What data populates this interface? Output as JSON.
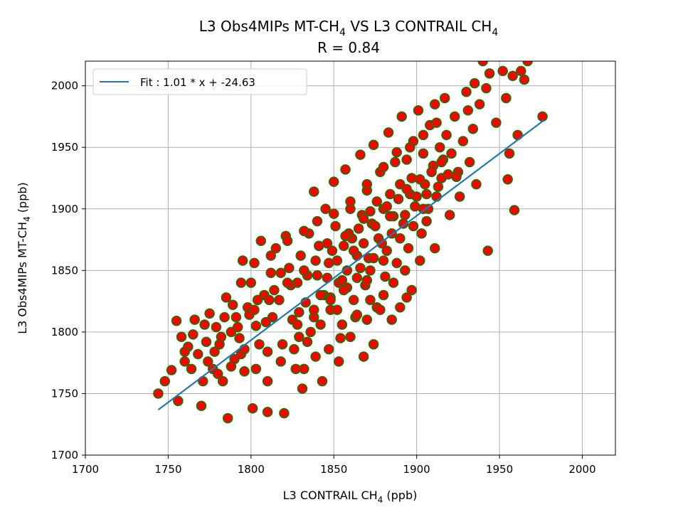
{
  "chart_data": {
    "type": "scatter",
    "title_line1_main": "L3 Obs4MIPs MT-CH",
    "title_line1_mid": " VS L3 CONTRAIL CH",
    "title_subscript": "4",
    "title_line2": "R = 0.84",
    "xlabel_main": "L3 CONTRAIL CH",
    "xlabel_sub": "4",
    "xlabel_tail": " (ppb)",
    "ylabel_main": "L3 Obs4MIPs MT-CH",
    "ylabel_sub": "4",
    "ylabel_tail": " (ppb)",
    "xlim": [
      1700,
      2020
    ],
    "ylim": [
      1700,
      2020
    ],
    "xticks": [
      "1700",
      "1750",
      "1800",
      "1850",
      "1900",
      "1950",
      "2000"
    ],
    "yticks": [
      "1700",
      "1750",
      "1800",
      "1850",
      "1900",
      "1950",
      "2000"
    ],
    "grid": true,
    "legend_position": "top-left",
    "legend_label": "Fit : 1.01 * x + -24.63",
    "fit": {
      "slope": 1.01,
      "intercept": -24.63,
      "x_range": [
        1744,
        1977
      ]
    },
    "marker_fill": "#ff0000",
    "marker_edge": "#008000",
    "fit_color": "#1f77b4",
    "points": [
      [
        1744,
        1750
      ],
      [
        1748,
        1760
      ],
      [
        1752,
        1769
      ],
      [
        1755,
        1809
      ],
      [
        1756,
        1744
      ],
      [
        1758,
        1796
      ],
      [
        1760,
        1776
      ],
      [
        1762,
        1788
      ],
      [
        1764,
        1770
      ],
      [
        1766,
        1810
      ],
      [
        1768,
        1782
      ],
      [
        1770,
        1740
      ],
      [
        1771,
        1760
      ],
      [
        1773,
        1792
      ],
      [
        1775,
        1815
      ],
      [
        1777,
        1770
      ],
      [
        1779,
        1804
      ],
      [
        1781,
        1790
      ],
      [
        1783,
        1760
      ],
      [
        1785,
        1828
      ],
      [
        1786,
        1730
      ],
      [
        1788,
        1800
      ],
      [
        1790,
        1778
      ],
      [
        1791,
        1812
      ],
      [
        1793,
        1795
      ],
      [
        1795,
        1858
      ],
      [
        1796,
        1768
      ],
      [
        1798,
        1820
      ],
      [
        1800,
        1840
      ],
      [
        1801,
        1738
      ],
      [
        1803,
        1805
      ],
      [
        1805,
        1790
      ],
      [
        1806,
        1874
      ],
      [
        1808,
        1830
      ],
      [
        1810,
        1760
      ],
      [
        1810,
        1735
      ],
      [
        1812,
        1848
      ],
      [
        1813,
        1812
      ],
      [
        1815,
        1868
      ],
      [
        1817,
        1826
      ],
      [
        1819,
        1790
      ],
      [
        1820,
        1734
      ],
      [
        1821,
        1878
      ],
      [
        1823,
        1852
      ],
      [
        1825,
        1810
      ],
      [
        1827,
        1770
      ],
      [
        1828,
        1840
      ],
      [
        1830,
        1862
      ],
      [
        1831,
        1754
      ],
      [
        1833,
        1824
      ],
      [
        1835,
        1880
      ],
      [
        1836,
        1800
      ],
      [
        1838,
        1914
      ],
      [
        1840,
        1846
      ],
      [
        1841,
        1870
      ],
      [
        1843,
        1760
      ],
      [
        1844,
        1830
      ],
      [
        1845,
        1900
      ],
      [
        1847,
        1856
      ],
      [
        1848,
        1818
      ],
      [
        1850,
        1922
      ],
      [
        1851,
        1886
      ],
      [
        1853,
        1840
      ],
      [
        1854,
        1795
      ],
      [
        1856,
        1870
      ],
      [
        1857,
        1932
      ],
      [
        1858,
        1850
      ],
      [
        1860,
        1900
      ],
      [
        1861,
        1876
      ],
      [
        1863,
        1812
      ],
      [
        1864,
        1862
      ],
      [
        1866,
        1944
      ],
      [
        1867,
        1895
      ],
      [
        1869,
        1838
      ],
      [
        1870,
        1915
      ],
      [
        1871,
        1860
      ],
      [
        1873,
        1888
      ],
      [
        1874,
        1952
      ],
      [
        1876,
        1820
      ],
      [
        1877,
        1876
      ],
      [
        1878,
        1930
      ],
      [
        1880,
        1900
      ],
      [
        1881,
        1845
      ],
      [
        1883,
        1962
      ],
      [
        1884,
        1912
      ],
      [
        1885,
        1880
      ],
      [
        1887,
        1938
      ],
      [
        1888,
        1856
      ],
      [
        1890,
        1920
      ],
      [
        1891,
        1975
      ],
      [
        1893,
        1895
      ],
      [
        1894,
        1940
      ],
      [
        1895,
        1868
      ],
      [
        1897,
        1925
      ],
      [
        1898,
        1955
      ],
      [
        1900,
        1910
      ],
      [
        1901,
        1980
      ],
      [
        1903,
        1880
      ],
      [
        1904,
        1945
      ],
      [
        1905,
        1920
      ],
      [
        1907,
        1900
      ],
      [
        1908,
        1968
      ],
      [
        1910,
        1935
      ],
      [
        1911,
        1985
      ],
      [
        1912,
        1910
      ],
      [
        1914,
        1950
      ],
      [
        1915,
        1925
      ],
      [
        1917,
        1990
      ],
      [
        1918,
        1960
      ],
      [
        1920,
        1895
      ],
      [
        1921,
        1945
      ],
      [
        1923,
        1975
      ],
      [
        1925,
        1930
      ],
      [
        1926,
        1910
      ],
      [
        1928,
        1955
      ],
      [
        1930,
        1995
      ],
      [
        1931,
        1980
      ],
      [
        1932,
        1938
      ],
      [
        1934,
        1965
      ],
      [
        1935,
        2002
      ],
      [
        1936,
        1920
      ],
      [
        1938,
        1985
      ],
      [
        1940,
        2020
      ],
      [
        1942,
        1998
      ],
      [
        1943,
        1866
      ],
      [
        1944,
        2010
      ],
      [
        1948,
        1970
      ],
      [
        1952,
        2012
      ],
      [
        1954,
        1990
      ],
      [
        1955,
        1924
      ],
      [
        1956,
        1945
      ],
      [
        1958,
        2008
      ],
      [
        1959,
        1899
      ],
      [
        1961,
        1960
      ],
      [
        1963,
        2012
      ],
      [
        1965,
        2005
      ],
      [
        1967,
        2020
      ],
      [
        1976,
        1975
      ],
      [
        1760,
        1784
      ],
      [
        1765,
        1798
      ],
      [
        1772,
        1806
      ],
      [
        1778,
        1784
      ],
      [
        1784,
        1812
      ],
      [
        1789,
        1822
      ],
      [
        1794,
        1782
      ],
      [
        1799,
        1814
      ],
      [
        1804,
        1826
      ],
      [
        1809,
        1808
      ],
      [
        1814,
        1834
      ],
      [
        1818,
        1848
      ],
      [
        1824,
        1838
      ],
      [
        1829,
        1816
      ],
      [
        1834,
        1846
      ],
      [
        1839,
        1858
      ],
      [
        1842,
        1830
      ],
      [
        1846,
        1844
      ],
      [
        1849,
        1866
      ],
      [
        1852,
        1858
      ],
      [
        1855,
        1842
      ],
      [
        1859,
        1880
      ],
      [
        1862,
        1866
      ],
      [
        1865,
        1884
      ],
      [
        1868,
        1872
      ],
      [
        1872,
        1898
      ],
      [
        1875,
        1886
      ],
      [
        1879,
        1872
      ],
      [
        1882,
        1902
      ],
      [
        1886,
        1894
      ],
      [
        1889,
        1908
      ],
      [
        1892,
        1888
      ],
      [
        1896,
        1912
      ],
      [
        1899,
        1902
      ],
      [
        1902,
        1924
      ],
      [
        1906,
        1912
      ],
      [
        1909,
        1930
      ],
      [
        1913,
        1918
      ],
      [
        1916,
        1940
      ],
      [
        1919,
        1928
      ],
      [
        1774,
        1776
      ],
      [
        1782,
        1796
      ],
      [
        1792,
        1804
      ],
      [
        1802,
        1818
      ],
      [
        1811,
        1826
      ],
      [
        1822,
        1840
      ],
      [
        1832,
        1850
      ],
      [
        1846,
        1872
      ],
      [
        1857,
        1878
      ],
      [
        1868,
        1892
      ],
      [
        1876,
        1906
      ],
      [
        1884,
        1894
      ],
      [
        1894,
        1916
      ],
      [
        1904,
        1900
      ],
      [
        1915,
        1938
      ],
      [
        1924,
        1926
      ],
      [
        1829,
        1796
      ],
      [
        1838,
        1812
      ],
      [
        1848,
        1828
      ],
      [
        1858,
        1836
      ],
      [
        1866,
        1852
      ],
      [
        1874,
        1860
      ],
      [
        1882,
        1866
      ],
      [
        1890,
        1876
      ],
      [
        1898,
        1886
      ],
      [
        1906,
        1890
      ],
      [
        1911,
        1868
      ],
      [
        1880,
        1830
      ],
      [
        1872,
        1826
      ],
      [
        1864,
        1814
      ],
      [
        1855,
        1806
      ],
      [
        1847,
        1786
      ],
      [
        1839,
        1780
      ],
      [
        1832,
        1770
      ],
      [
        1853,
        1776
      ],
      [
        1860,
        1796
      ],
      [
        1870,
        1810
      ],
      [
        1878,
        1818
      ],
      [
        1886,
        1840
      ],
      [
        1893,
        1850
      ],
      [
        1902,
        1858
      ],
      [
        1890,
        1820
      ],
      [
        1897,
        1834
      ],
      [
        1874,
        1790
      ],
      [
        1868,
        1780
      ],
      [
        1885,
        1810
      ],
      [
        1894,
        1828
      ],
      [
        1870,
        1842
      ],
      [
        1862,
        1826
      ],
      [
        1852,
        1818
      ],
      [
        1842,
        1806
      ],
      [
        1834,
        1792
      ],
      [
        1826,
        1786
      ],
      [
        1818,
        1776
      ],
      [
        1810,
        1784
      ],
      [
        1803,
        1770
      ],
      [
        1796,
        1786
      ],
      [
        1788,
        1772
      ],
      [
        1780,
        1766
      ],
      [
        1794,
        1840
      ],
      [
        1802,
        1856
      ],
      [
        1812,
        1862
      ],
      [
        1822,
        1874
      ],
      [
        1832,
        1882
      ],
      [
        1840,
        1890
      ],
      [
        1850,
        1896
      ],
      [
        1860,
        1906
      ],
      [
        1870,
        1920
      ],
      [
        1880,
        1934
      ],
      [
        1888,
        1946
      ],
      [
        1896,
        1950
      ],
      [
        1904,
        1960
      ],
      [
        1912,
        1970
      ],
      [
        1880,
        1858
      ],
      [
        1872,
        1850
      ],
      [
        1864,
        1844
      ],
      [
        1856,
        1834
      ],
      [
        1848,
        1826
      ],
      [
        1838,
        1818
      ],
      [
        1828,
        1806
      ]
    ]
  }
}
